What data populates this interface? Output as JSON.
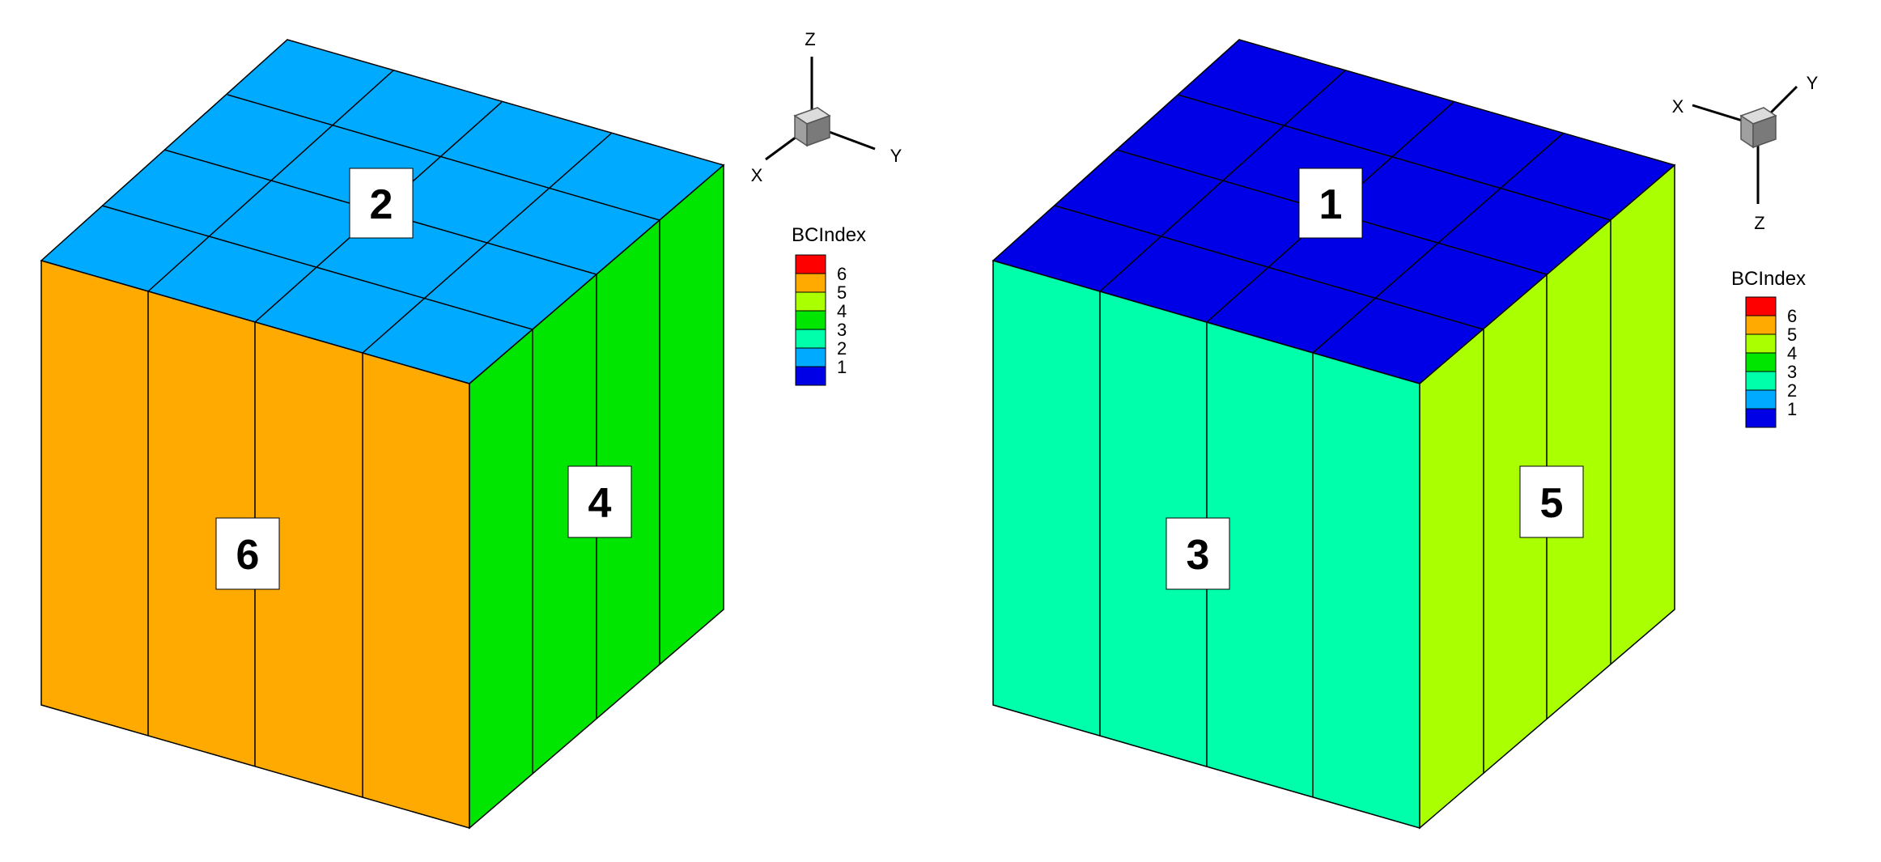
{
  "left_view": {
    "face_labels": {
      "top": "2",
      "front": "6",
      "side": "4"
    },
    "face_colors": {
      "top": "#00AAFF",
      "front": "#FFAA00",
      "side": "#00E600"
    },
    "axes": {
      "z": "Z",
      "x": "X",
      "y": "Y"
    },
    "legend": {
      "title": "BCIndex",
      "levels": [
        {
          "label": "6",
          "color": "#FF0000"
        },
        {
          "label": "5",
          "color": "#FFAA00"
        },
        {
          "label": "4",
          "color": "#AAFF00"
        },
        {
          "label": "3",
          "color": "#00E600"
        },
        {
          "label": "2",
          "color": "#00FFAA"
        },
        {
          "label": "1",
          "color": "#00AAFF"
        },
        {
          "label": "",
          "color": "#0000E6"
        }
      ]
    }
  },
  "right_view": {
    "face_labels": {
      "top": "1",
      "front": "3",
      "side": "5"
    },
    "face_colors": {
      "top": "#0000E6",
      "front": "#00FFAA",
      "side": "#AAFF00"
    },
    "axes": {
      "x": "X",
      "y": "Y",
      "z": "Z"
    },
    "legend": {
      "title": "BCIndex",
      "levels": [
        {
          "label": "6",
          "color": "#FF0000"
        },
        {
          "label": "5",
          "color": "#FFAA00"
        },
        {
          "label": "4",
          "color": "#AAFF00"
        },
        {
          "label": "3",
          "color": "#00E600"
        },
        {
          "label": "2",
          "color": "#00FFAA"
        },
        {
          "label": "1",
          "color": "#00AAFF"
        },
        {
          "label": "",
          "color": "#0000E6"
        }
      ]
    }
  },
  "grid_lines": "#000000"
}
